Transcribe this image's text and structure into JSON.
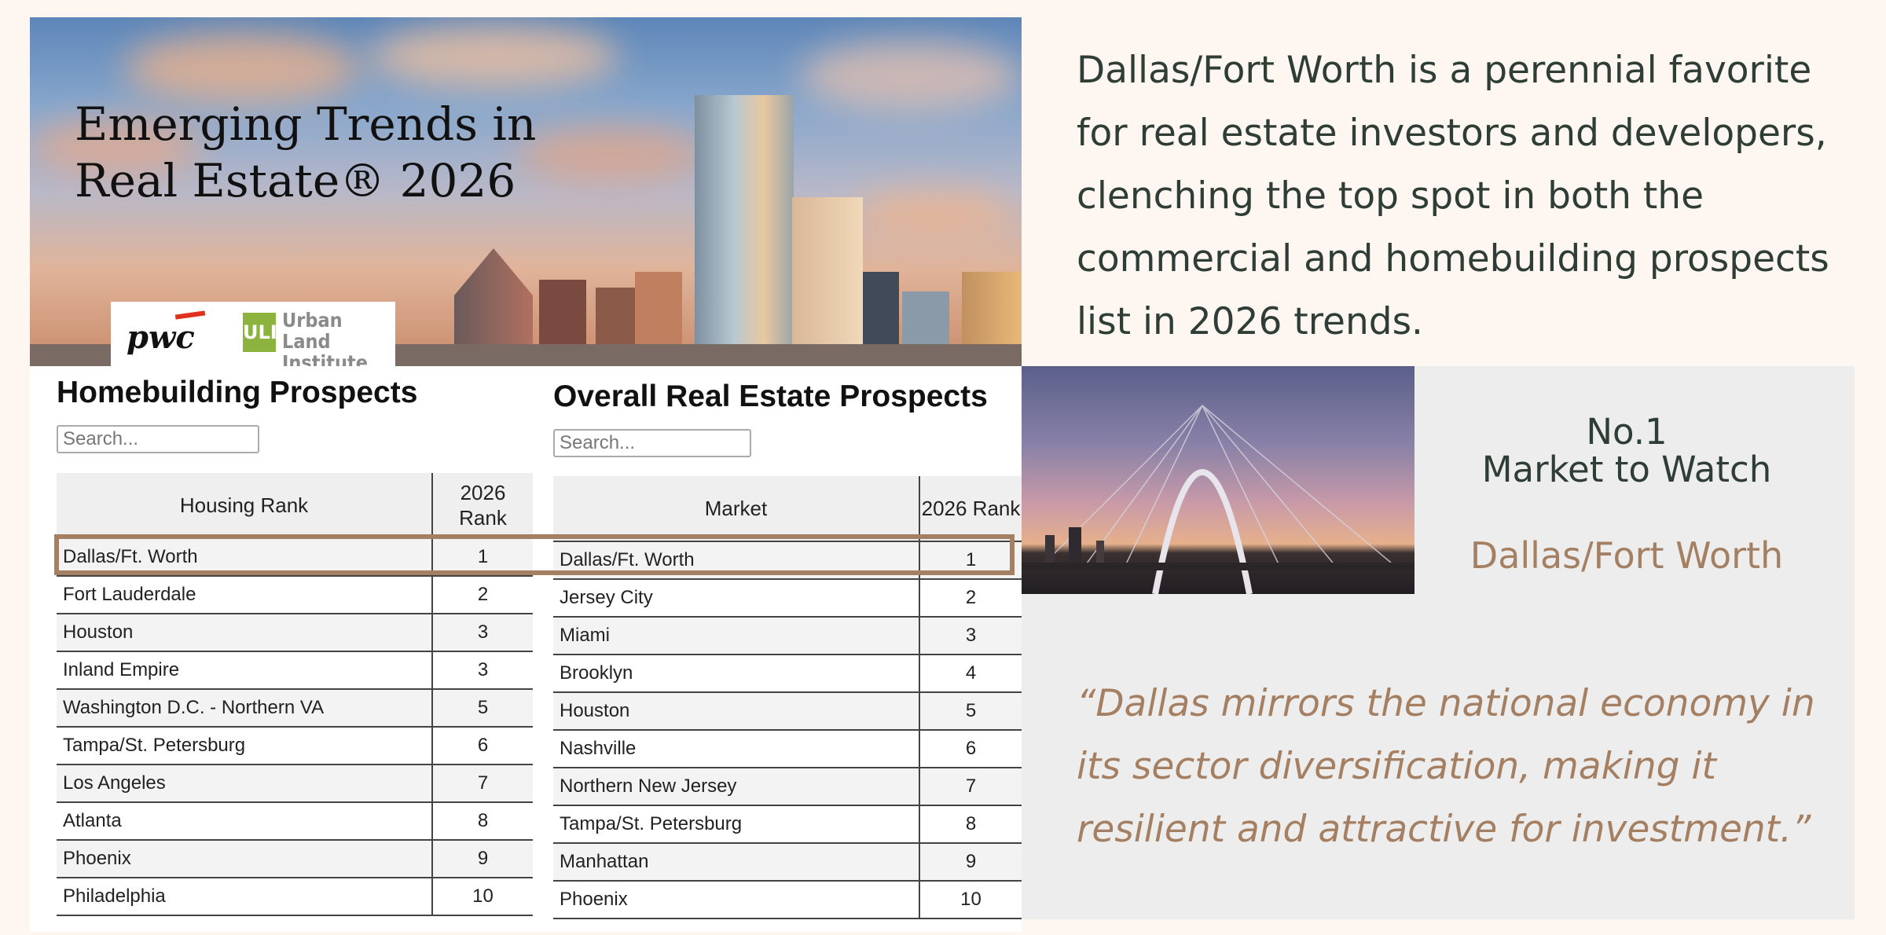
{
  "hero": {
    "title": "Emerging Trends in\nReal Estate® 2026",
    "logos": {
      "pwc": "pwc",
      "uli_mark": "ULI",
      "uli_name": "Urban Land Institute"
    }
  },
  "intro": "Dallas/Fort Worth is a perennial favorite for real estate investors and developers, clenching the top spot in both the commercial and homebuilding prospects list in 2026 trends.",
  "homebuilding": {
    "title": "Homebuilding Prospects",
    "search_placeholder": "Search...",
    "col_market": "Housing Rank",
    "col_rank": "2026 Rank",
    "rows": [
      {
        "market": "Dallas/Ft. Worth",
        "rank": "1"
      },
      {
        "market": "Fort Lauderdale",
        "rank": "2"
      },
      {
        "market": "Houston",
        "rank": "3"
      },
      {
        "market": "Inland Empire",
        "rank": "3"
      },
      {
        "market": "Washington D.C. - Northern VA",
        "rank": "5"
      },
      {
        "market": "Tampa/St. Petersburg",
        "rank": "6"
      },
      {
        "market": "Los Angeles",
        "rank": "7"
      },
      {
        "market": "Atlanta",
        "rank": "8"
      },
      {
        "market": "Phoenix",
        "rank": "9"
      },
      {
        "market": "Philadelphia",
        "rank": "10"
      }
    ]
  },
  "overall": {
    "title": "Overall Real Estate Prospects",
    "search_placeholder": "Search...",
    "col_market": "Market",
    "col_rank": "2026 Rank",
    "rows": [
      {
        "market": "Dallas/Ft. Worth",
        "rank": "1"
      },
      {
        "market": "Jersey City",
        "rank": "2"
      },
      {
        "market": "Miami",
        "rank": "3"
      },
      {
        "market": "Brooklyn",
        "rank": "4"
      },
      {
        "market": "Houston",
        "rank": "5"
      },
      {
        "market": "Nashville",
        "rank": "6"
      },
      {
        "market": "Northern New Jersey",
        "rank": "7"
      },
      {
        "market": "Tampa/St. Petersburg",
        "rank": "8"
      },
      {
        "market": "Manhattan",
        "rank": "9"
      },
      {
        "market": "Phoenix",
        "rank": "10"
      }
    ]
  },
  "callout": {
    "no1": "No.1",
    "label": "Market to Watch",
    "market": "Dallas/Fort Worth",
    "quote": "“Dallas mirrors the national economy in its sector diversification, making it resilient and attractive for investment.”"
  },
  "colors": {
    "accent": "#a57f62",
    "text_dark": "#2f3d37",
    "background": "#fdf6f1",
    "panel": "#ededed"
  }
}
